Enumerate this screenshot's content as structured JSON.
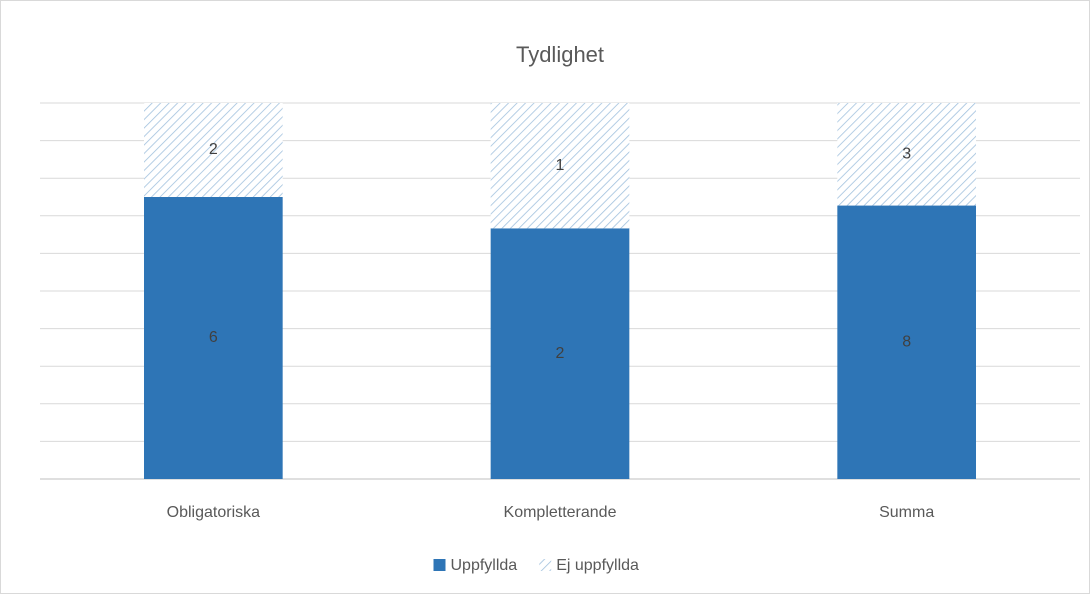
{
  "chart_data": {
    "type": "bar",
    "stacking": "percent",
    "title": "Tydlighet",
    "categories": [
      "Obligatoriska",
      "Kompletterande",
      "Summa"
    ],
    "series": [
      {
        "name": "Uppfyllda",
        "color": "#2e75b6",
        "fill": "solid",
        "values": [
          6,
          2,
          8
        ]
      },
      {
        "name": "Ej uppfyllda",
        "color": "#2e75b6",
        "fill": "hatch",
        "values": [
          2,
          1,
          3
        ]
      }
    ],
    "ylim": [
      0,
      100
    ],
    "yticks": [
      0,
      10,
      20,
      30,
      40,
      50,
      60,
      70,
      80,
      90,
      100
    ],
    "ytick_labels": false,
    "grid": true,
    "legend": "bottom"
  }
}
